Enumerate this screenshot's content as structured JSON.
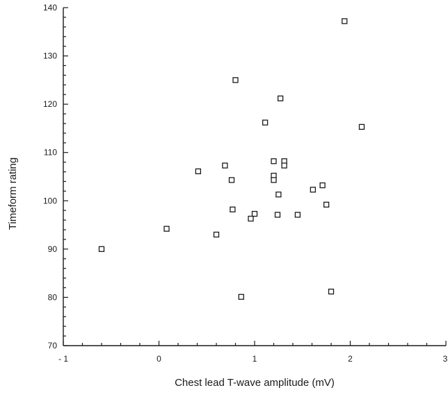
{
  "chart_data": {
    "type": "scatter",
    "title": "",
    "xlabel": "Chest lead T-wave amplitude (mV)",
    "ylabel": "Timeform rating",
    "xlim": [
      -1,
      3
    ],
    "ylim": [
      70,
      140
    ],
    "x_ticks": [
      -1,
      0,
      1,
      2,
      3
    ],
    "x_tick_labels": [
      "- 1",
      "0",
      "1",
      "2",
      "3"
    ],
    "y_ticks": [
      70,
      80,
      90,
      100,
      110,
      120,
      130,
      140
    ],
    "grid": false,
    "legend": "none",
    "points": [
      {
        "x": -0.6,
        "y": 90
      },
      {
        "x": 0.08,
        "y": 94.2
      },
      {
        "x": 0.41,
        "y": 106.1
      },
      {
        "x": 0.6,
        "y": 93
      },
      {
        "x": 0.69,
        "y": 107.3
      },
      {
        "x": 0.76,
        "y": 104.3
      },
      {
        "x": 0.77,
        "y": 98.2
      },
      {
        "x": 0.8,
        "y": 125
      },
      {
        "x": 0.86,
        "y": 80.1
      },
      {
        "x": 0.96,
        "y": 96.3
      },
      {
        "x": 1.0,
        "y": 97.3
      },
      {
        "x": 1.11,
        "y": 116.2
      },
      {
        "x": 1.2,
        "y": 108.2
      },
      {
        "x": 1.2,
        "y": 105.2
      },
      {
        "x": 1.2,
        "y": 104.3
      },
      {
        "x": 1.24,
        "y": 97.1
      },
      {
        "x": 1.25,
        "y": 101.3
      },
      {
        "x": 1.27,
        "y": 121.2
      },
      {
        "x": 1.31,
        "y": 108.2
      },
      {
        "x": 1.31,
        "y": 107.3
      },
      {
        "x": 1.45,
        "y": 97.1
      },
      {
        "x": 1.61,
        "y": 102.3
      },
      {
        "x": 1.71,
        "y": 103.2
      },
      {
        "x": 1.75,
        "y": 99.2
      },
      {
        "x": 1.8,
        "y": 81.2
      },
      {
        "x": 1.94,
        "y": 137.2
      },
      {
        "x": 2.12,
        "y": 115.3
      }
    ]
  }
}
